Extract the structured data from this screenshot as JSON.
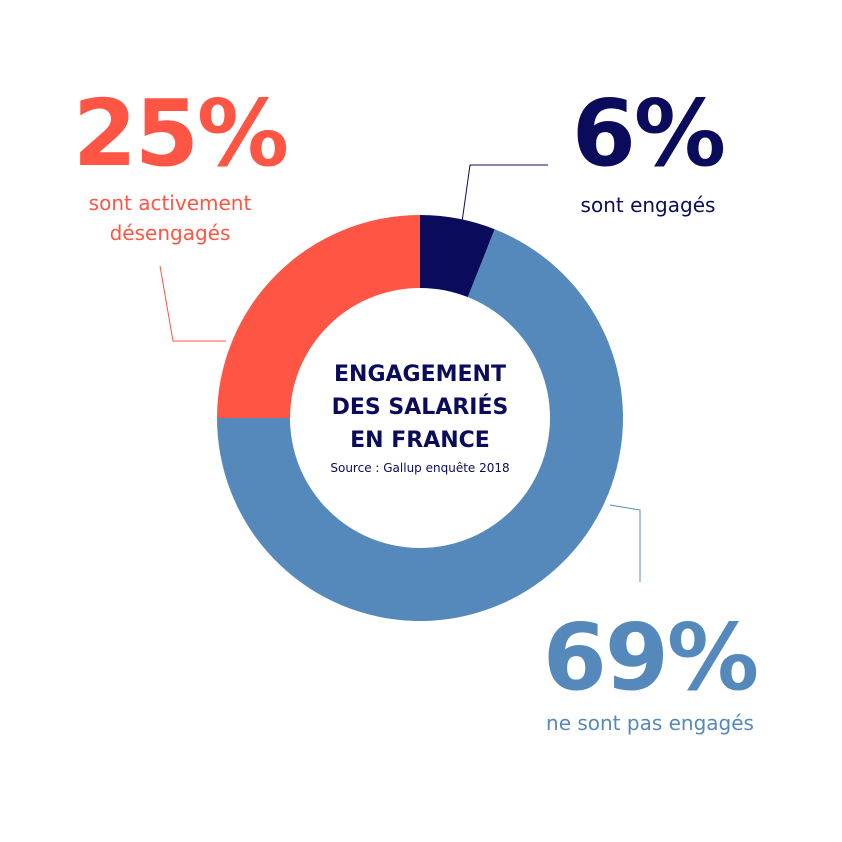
{
  "chart_data": {
    "type": "donut",
    "title": "ENGAGEMENT DES SALARIÉS EN FRANCE",
    "subtitle": "Source : Gallup enquête 2018",
    "categories": [
      "sont engagés",
      "ne sont pas engagés",
      "sont activement désengagés"
    ],
    "values": [
      6,
      69,
      25
    ],
    "value_labels": [
      "6%",
      "69%",
      "25%"
    ],
    "colors": [
      "#0b0b5c",
      "#5589bb",
      "#ff5544"
    ]
  }
}
